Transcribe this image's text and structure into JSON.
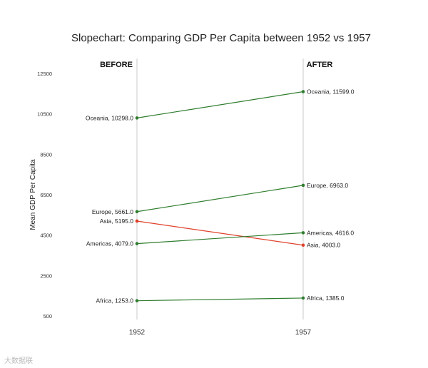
{
  "chart_data": {
    "type": "line",
    "title": "Slopechart: Comparing GDP Per Capita between 1952 vs 1957",
    "ylabel": "Mean GDP Per Capita",
    "xlabel": "",
    "categories": [
      "1952",
      "1957"
    ],
    "ylim": [
      500,
      12500
    ],
    "yticks": [
      500,
      2500,
      4500,
      6500,
      8500,
      10500,
      12500
    ],
    "headers": {
      "before": "BEFORE",
      "after": "AFTER"
    },
    "series": [
      {
        "name": "Oceania",
        "values": [
          10298.0,
          11599.0
        ],
        "color": "#2e7d2e"
      },
      {
        "name": "Europe",
        "values": [
          5661.0,
          6963.0
        ],
        "color": "#2e7d2e"
      },
      {
        "name": "Asia",
        "values": [
          5195.0,
          4003.0
        ],
        "color": "#e0402a"
      },
      {
        "name": "Americas",
        "values": [
          4079.0,
          4616.0
        ],
        "color": "#2e7d2e"
      },
      {
        "name": "Africa",
        "values": [
          1253.0,
          1385.0
        ],
        "color": "#2e7d2e"
      }
    ]
  },
  "colors": {
    "increase": "#2e7d2e",
    "decrease": "#e0402a",
    "vline": "#c8c8c8"
  },
  "watermark": "大数据联"
}
